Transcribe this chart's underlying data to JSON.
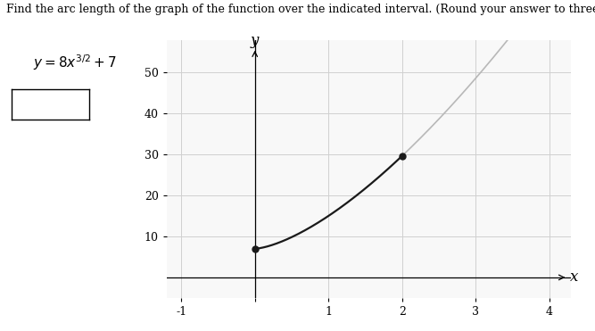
{
  "title_line1": "Find the arc length of the graph of the function over the indicated interval. (Round your answer to three decimal places.)",
  "xlabel": "x",
  "ylabel": "y",
  "xlim": [
    -1.2,
    4.3
  ],
  "ylim": [
    -5,
    58
  ],
  "xticks": [
    -1,
    0,
    1,
    2,
    3,
    4
  ],
  "xtick_labels": [
    "-1",
    "",
    "1",
    "2",
    "3",
    "4"
  ],
  "yticks": [
    10,
    20,
    30,
    40,
    50
  ],
  "curve_color_main": "#1a1a1a",
  "curve_color_ext": "#b8b8b8",
  "x_start": 0,
  "x_end": 2,
  "x_ext_end": 3.5,
  "dot_points": [
    [
      0,
      7
    ],
    [
      2,
      29.627
    ]
  ],
  "dot_color": "#1a1a1a",
  "dot_size": 5,
  "background_color": "#f8f8f8",
  "grid_color": "#d0d0d0",
  "title_fontsize": 9,
  "axis_label_fontsize": 12,
  "tick_fontsize": 9
}
